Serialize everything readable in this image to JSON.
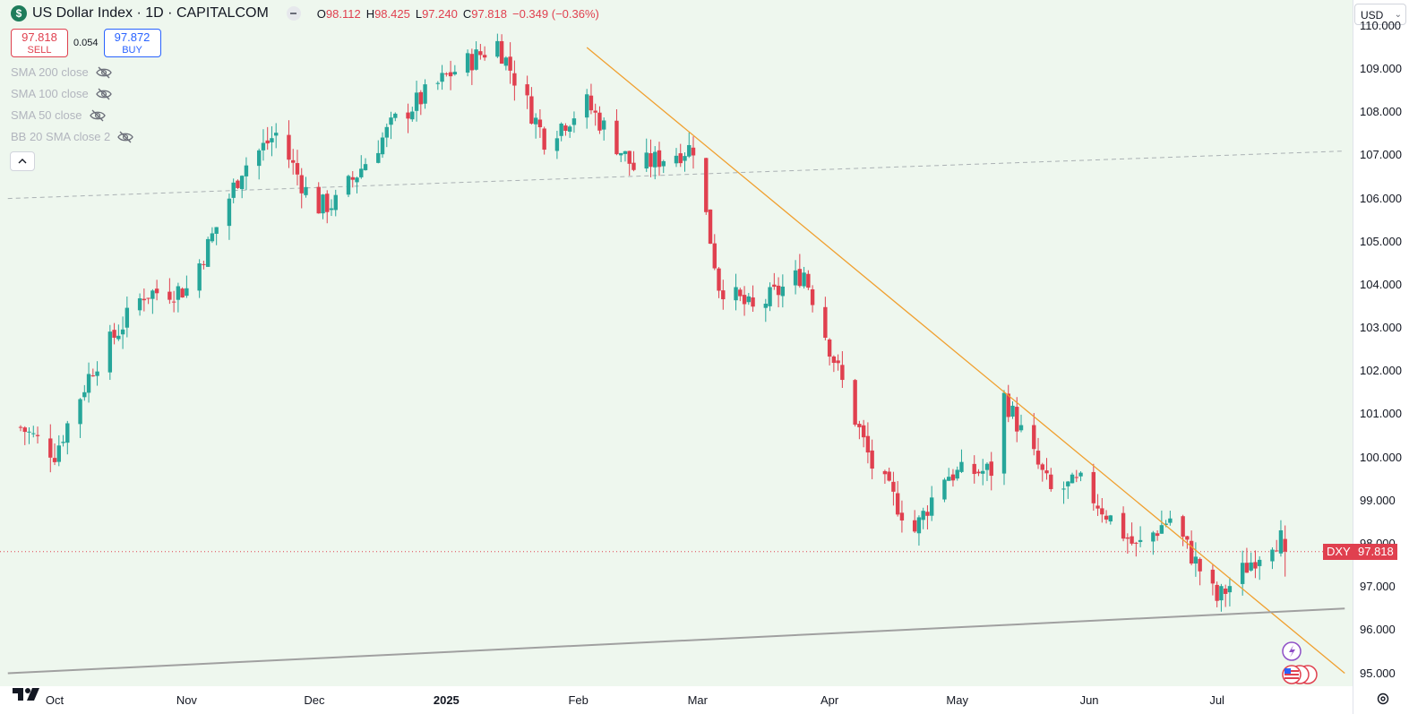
{
  "header": {
    "symbol_icon": "$",
    "title": "US Dollar Index · 1D · CAPITALCOM",
    "ohlc": {
      "o_label": "O",
      "o_value": "98.112",
      "h_label": "H",
      "h_value": "98.425",
      "l_label": "L",
      "l_value": "97.240",
      "c_label": "C",
      "c_value": "97.818",
      "change": "−0.349 (−0.36%)"
    }
  },
  "trade": {
    "sell_price": "97.818",
    "sell_label": "SELL",
    "spread": "0.054",
    "buy_price": "97.872",
    "buy_label": "BUY"
  },
  "indicators": [
    {
      "label": "SMA 200 close",
      "icon": "eye-crossed-icon"
    },
    {
      "label": "SMA 100 close",
      "icon": "eye-crossed-icon"
    },
    {
      "label": "SMA 50 close",
      "icon": "eye-crossed-icon"
    },
    {
      "label": "BB 20 SMA close 2",
      "icon": "eye-crossed-icon"
    }
  ],
  "price_scale": {
    "currency": "USD",
    "ticks": [
      "110.000",
      "109.000",
      "108.000",
      "107.000",
      "106.000",
      "105.000",
      "104.000",
      "103.000",
      "102.000",
      "101.000",
      "100.000",
      "99.000",
      "98.000",
      "97.000",
      "96.000",
      "95.000"
    ],
    "symbol_tag": "DXY",
    "last_price_tag": "97.818"
  },
  "time_axis": {
    "months": [
      {
        "label": "Oct",
        "bold": false
      },
      {
        "label": "Nov",
        "bold": false
      },
      {
        "label": "Dec",
        "bold": false
      },
      {
        "label": "2025",
        "bold": true
      },
      {
        "label": "Feb",
        "bold": false
      },
      {
        "label": "Mar",
        "bold": false
      },
      {
        "label": "Apr",
        "bold": false
      },
      {
        "label": "May",
        "bold": false
      },
      {
        "label": "Jun",
        "bold": false
      },
      {
        "label": "Jul",
        "bold": false
      }
    ]
  },
  "colors": {
    "up": "#26a69a",
    "down": "#e0404f",
    "background": "#eef7ee",
    "trendline": "#f0a030",
    "support": "#a0a0a0"
  },
  "chart_data": {
    "type": "candlestick",
    "anchors": [
      {
        "date": "2024-09-23",
        "price": 100.7
      },
      {
        "date": "2024-09-27",
        "price": 100.4
      },
      {
        "date": "2024-10-01",
        "price": 100.1
      },
      {
        "date": "2024-10-10",
        "price": 102.1
      },
      {
        "date": "2024-10-22",
        "price": 103.8
      },
      {
        "date": "2024-11-01",
        "price": 103.9
      },
      {
        "date": "2024-11-06",
        "price": 104.9
      },
      {
        "date": "2024-11-14",
        "price": 106.7
      },
      {
        "date": "2024-11-22",
        "price": 107.5
      },
      {
        "date": "2024-12-01",
        "price": 105.8
      },
      {
        "date": "2024-12-06",
        "price": 105.9
      },
      {
        "date": "2024-12-20",
        "price": 107.8
      },
      {
        "date": "2025-01-02",
        "price": 108.9
      },
      {
        "date": "2025-01-13",
        "price": 109.6
      },
      {
        "date": "2025-01-24",
        "price": 107.4
      },
      {
        "date": "2025-02-03",
        "price": 108.2
      },
      {
        "date": "2025-02-14",
        "price": 106.7
      },
      {
        "date": "2025-02-28",
        "price": 107.2
      },
      {
        "date": "2025-03-06",
        "price": 104.0
      },
      {
        "date": "2025-03-14",
        "price": 103.4
      },
      {
        "date": "2025-03-26",
        "price": 104.3
      },
      {
        "date": "2025-04-03",
        "price": 102.0
      },
      {
        "date": "2025-04-11",
        "price": 99.8
      },
      {
        "date": "2025-04-21",
        "price": 98.3
      },
      {
        "date": "2025-04-28",
        "price": 99.6
      },
      {
        "date": "2025-05-09",
        "price": 99.7
      },
      {
        "date": "2025-05-12",
        "price": 101.4
      },
      {
        "date": "2025-05-23",
        "price": 99.2
      },
      {
        "date": "2025-05-30",
        "price": 99.4
      },
      {
        "date": "2025-06-12",
        "price": 97.9
      },
      {
        "date": "2025-06-20",
        "price": 98.6
      },
      {
        "date": "2025-06-27",
        "price": 97.4
      },
      {
        "date": "2025-07-01",
        "price": 96.7
      },
      {
        "date": "2025-07-10",
        "price": 97.7
      },
      {
        "date": "2025-07-14",
        "price": 98.1
      },
      {
        "date": "2025-07-16",
        "price": 98.1
      },
      {
        "date": "2025-07-17",
        "price": 97.818
      }
    ],
    "last_candle": {
      "open": 98.112,
      "high": 98.425,
      "low": 97.24,
      "close": 97.818
    },
    "trendline": [
      {
        "date": "2025-02-03",
        "price": 109.5
      },
      {
        "date": "2025-07-31",
        "price": 95.0
      }
    ],
    "support_line": [
      {
        "date": "2024-09-20",
        "price": 95.0
      },
      {
        "date": "2025-07-31",
        "price": 96.5
      }
    ],
    "dashed_line": [
      {
        "date": "2024-09-20",
        "price": 106.0
      },
      {
        "date": "2025-07-31",
        "price": 107.1
      }
    ],
    "last_price_line": 97.818,
    "y_range": [
      94.7,
      110.6
    ]
  }
}
